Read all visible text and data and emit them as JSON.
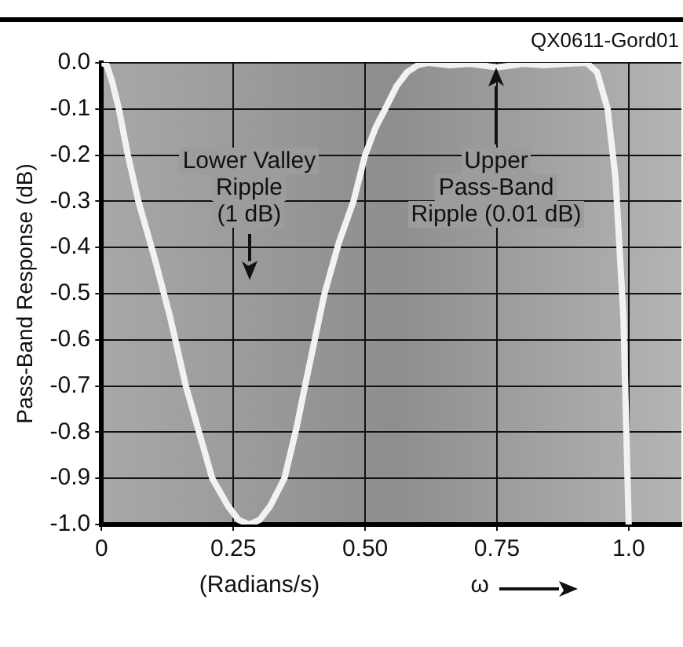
{
  "chart_data": {
    "type": "line",
    "xlabel": "(Radians/s)",
    "ylabel": "Pass-Band Response (dB)",
    "annotations": [
      "QX0611-Gord01",
      "ω",
      "Lower Valley Ripple (1 dB)",
      "Upper Pass-Band Ripple (0.01 dB)"
    ],
    "series": [
      {
        "color": "#f2f2f2",
        "x": [
          0,
          0.01,
          0.02,
          0.033,
          0.05,
          0.07,
          0.1,
          0.13,
          0.16,
          0.19,
          0.21,
          0.24,
          0.26,
          0.28,
          0.3,
          0.32,
          0.347,
          0.37,
          0.386,
          0.41,
          0.423,
          0.45,
          0.478,
          0.5,
          0.52,
          0.538,
          0.56,
          0.58,
          0.6,
          0.62,
          0.66,
          0.7,
          0.75,
          0.8,
          0.84,
          0.88,
          0.92,
          0.94,
          0.96,
          0.975,
          0.99,
          1.0
        ],
        "values": [
          0,
          -0.005,
          -0.04,
          -0.1,
          -0.2,
          -0.3,
          -0.42,
          -0.55,
          -0.7,
          -0.82,
          -0.9,
          -0.96,
          -0.99,
          -1.0,
          -0.99,
          -0.96,
          -0.9,
          -0.79,
          -0.7,
          -0.57,
          -0.5,
          -0.39,
          -0.3,
          -0.2,
          -0.14,
          -0.1,
          -0.05,
          -0.02,
          -0.005,
          0,
          -0.005,
          -0.002,
          -0.01,
          -0.002,
          -0.005,
          -0.002,
          0,
          -0.02,
          -0.1,
          -0.25,
          -0.55,
          -1.0
        ]
      }
    ],
    "xlim": [
      0,
      1.1
    ],
    "ylim": [
      -1.0,
      0
    ],
    "xticks": [
      0,
      {
        "value": 0.25,
        "label": "0.25"
      },
      {
        "value": 0.5,
        "label": "0.50"
      },
      {
        "value": 0.75,
        "label": "0.75"
      },
      {
        "value": 1,
        "label": "1.0"
      }
    ],
    "yticks": [
      {
        "value": 0,
        "label": "0.0"
      },
      -0.1,
      -0.2,
      -0.3,
      -0.4,
      -0.5,
      -0.6,
      -0.7,
      -0.8,
      -0.9,
      {
        "value": -1,
        "label": "-1.0"
      }
    ],
    "grid": true,
    "legend": false,
    "marker": "none",
    "line_style": "solid"
  }
}
